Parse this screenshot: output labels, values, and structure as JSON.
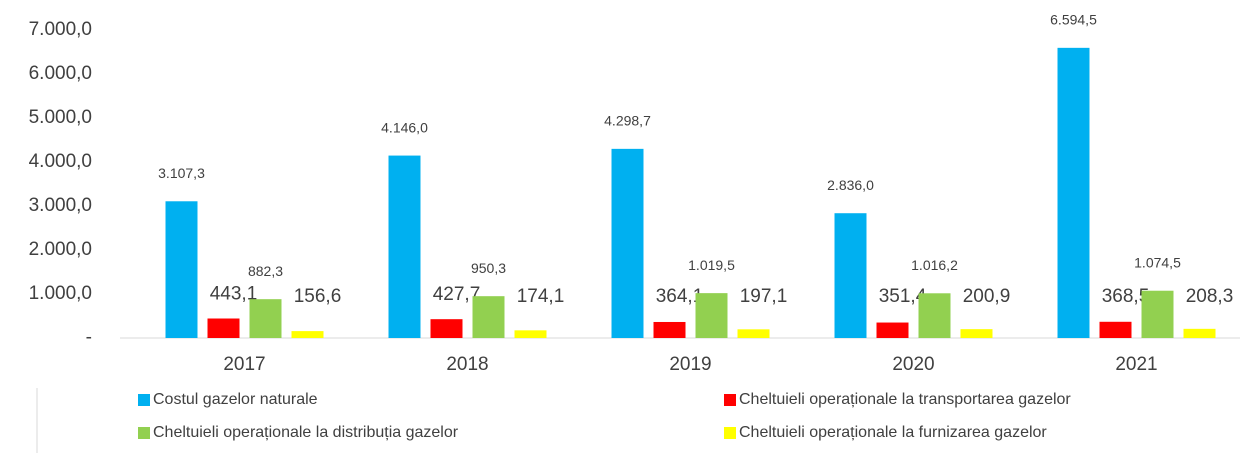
{
  "chart_data": {
    "type": "bar",
    "categories": [
      "2017",
      "2018",
      "2019",
      "2020",
      "2021"
    ],
    "series": [
      {
        "name": "Costul gazelor naturale",
        "color": "#00b0f0",
        "values": [
          3107.3,
          4146.0,
          4298.7,
          2836.0,
          6594.5
        ],
        "value_labels": [
          "3.107,3",
          "4.146,0",
          "4.298,7",
          "2.836,0",
          "6.594,5"
        ]
      },
      {
        "name": "Cheltuieli operaționale la transportarea gazelor",
        "color": "#ff0000",
        "values": [
          443.1,
          427.7,
          364.1,
          351.4,
          368.5
        ],
        "value_labels": [
          "443,1",
          "427,7",
          "364,1",
          "351,4",
          "368,5"
        ]
      },
      {
        "name": "Cheltuieli operaționale la distribuția gazelor",
        "color": "#92d050",
        "values": [
          882.3,
          950.3,
          1019.5,
          1016.2,
          1074.5
        ],
        "value_labels": [
          "882,3",
          "950,3",
          "1.019,5",
          "1.016,2",
          "1.074,5"
        ]
      },
      {
        "name": "Cheltuieli operaționale la furnizarea gazelor",
        "color": "#ffff00",
        "values": [
          156.6,
          174.1,
          197.1,
          200.9,
          208.3
        ],
        "value_labels": [
          "156,6",
          "174,1",
          "197,1",
          "200,9",
          "208,3"
        ]
      }
    ],
    "ylim": [
      0,
      7000
    ],
    "yticks": [
      {
        "value": 0,
        "label": "-"
      },
      {
        "value": 1000,
        "label": "1.000,0"
      },
      {
        "value": 2000,
        "label": "2.000,0"
      },
      {
        "value": 3000,
        "label": "3.000,0"
      },
      {
        "value": 4000,
        "label": "4.000,0"
      },
      {
        "value": 5000,
        "label": "5.000,0"
      },
      {
        "value": 6000,
        "label": "6.000,0"
      },
      {
        "value": 7000,
        "label": "7.000,0"
      }
    ],
    "grid": false
  }
}
